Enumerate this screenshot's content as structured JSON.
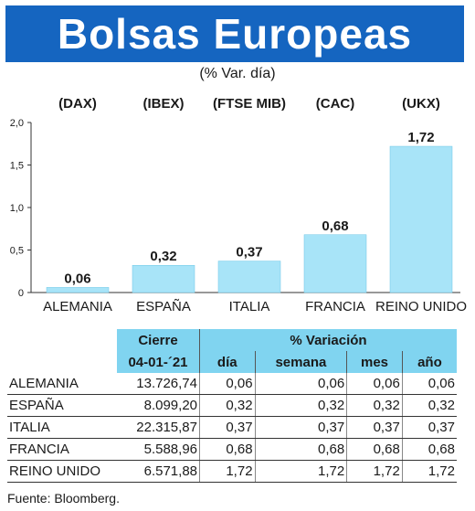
{
  "header": {
    "title": "Bolsas Europeas",
    "subtitle": "(% Var. día)"
  },
  "colors": {
    "banner": "#1565c0",
    "bar": "#a8e4f8",
    "table_header": "#80d4f0"
  },
  "chart_data": {
    "type": "bar",
    "categories": [
      "ALEMANIA",
      "ESPAÑA",
      "ITALIA",
      "FRANCIA",
      "REINO UNIDO"
    ],
    "indices": [
      "(DAX)",
      "(IBEX)",
      "(FTSE MIB)",
      "(CAC)",
      "(UKX)"
    ],
    "values": [
      0.06,
      0.32,
      0.37,
      0.68,
      1.72
    ],
    "value_labels": [
      "0,06",
      "0,32",
      "0,37",
      "0,68",
      "1,72"
    ],
    "yticks": [
      "0",
      "0,5",
      "1,0",
      "1,5",
      "2,0"
    ],
    "ylim": [
      0,
      2.0
    ],
    "grid": false
  },
  "table": {
    "group_headers": [
      "Cierre",
      "% Variación"
    ],
    "sub_headers": [
      "04-01-´21",
      "día",
      "semana",
      "mes",
      "año"
    ],
    "rows": [
      {
        "country": "ALEMANIA",
        "close": "13.726,74",
        "dia": "0,06",
        "semana": "0,06",
        "mes": "0,06",
        "ano": "0,06"
      },
      {
        "country": "ESPAÑA",
        "close": "8.099,20",
        "dia": "0,32",
        "semana": "0,32",
        "mes": "0,32",
        "ano": "0,32"
      },
      {
        "country": "ITALIA",
        "close": "22.315,87",
        "dia": "0,37",
        "semana": "0,37",
        "mes": "0,37",
        "ano": "0,37"
      },
      {
        "country": "FRANCIA",
        "close": "5.588,96",
        "dia": "0,68",
        "semana": "0,68",
        "mes": "0,68",
        "ano": "0,68"
      },
      {
        "country": "REINO UNIDO",
        "close": "6.571,88",
        "dia": "1,72",
        "semana": "1,72",
        "mes": "1,72",
        "ano": "1,72"
      }
    ]
  },
  "source": "Fuente: Bloomberg."
}
